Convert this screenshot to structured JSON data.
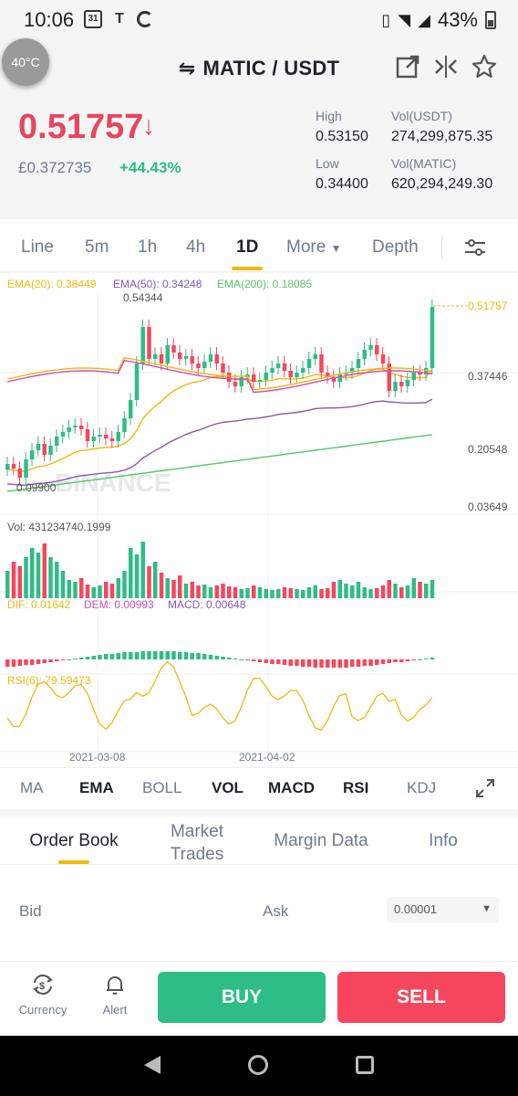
{
  "status": {
    "time": "10:06",
    "calendar_day": "31",
    "battery": "43%"
  },
  "header": {
    "temp": "40°C",
    "pair": "MATIC / USDT",
    "price": "0.51757",
    "fiat_price": "£0.372735",
    "change": "+44.43%",
    "stats": {
      "high_label": "High",
      "high": "0.53150",
      "low_label": "Low",
      "low": "0.34400",
      "vol_usdt_label": "Vol(USDT)",
      "vol_usdt": "274,299,875.35",
      "vol_matic_label": "Vol(MATIC)",
      "vol_matic": "620,294,249.30"
    }
  },
  "tabs": [
    "Line",
    "5m",
    "1h",
    "4h",
    "1D",
    "More",
    "Depth"
  ],
  "active_tab": "1D",
  "chart_data": {
    "type": "candlestick",
    "ema_labels": {
      "ema20": "EMA(20): 0.38449",
      "ema50": "EMA(50): 0.34248",
      "ema200": "EMA(200): 0.18085"
    },
    "price_axis": [
      "0.54344",
      "0.37446",
      "0.20548",
      "0.03649"
    ],
    "high_marker": "0.54344",
    "low_marker": "0.09900",
    "current_tag": "0.51757",
    "watermark": "BINANCE",
    "vol_label": "Vol: 431234740.1999",
    "macd_labels": {
      "dif": "DIF: 0.01642",
      "dem": "DEM: 0.00993",
      "macd": "MACD: 0.00648"
    },
    "rsi_label": "RSI(6): 79.59473",
    "x_dates": [
      "2021-03-08",
      "2021-04-02"
    ],
    "colors": {
      "up": "#2ebd85",
      "down": "#f6465d",
      "ema20": "#f0b90b",
      "ema50": "#8a56b8",
      "ema200": "#55c46b",
      "dif": "#f0b90b",
      "dem": "#d04bc0"
    }
  },
  "indicators": {
    "items": [
      "MA",
      "EMA",
      "BOLL",
      "VOL",
      "MACD",
      "RSI",
      "KDJ"
    ],
    "active": [
      "EMA",
      "VOL",
      "MACD",
      "RSI"
    ]
  },
  "orderbook": {
    "tabs": [
      "Order Book",
      "Market\nTrades",
      "Margin Data",
      "Info"
    ],
    "bid": "Bid",
    "ask": "Ask",
    "precision": "0.00001"
  },
  "bottom": {
    "currency": "Currency",
    "alert": "Alert",
    "buy": "BUY",
    "sell": "SELL"
  }
}
